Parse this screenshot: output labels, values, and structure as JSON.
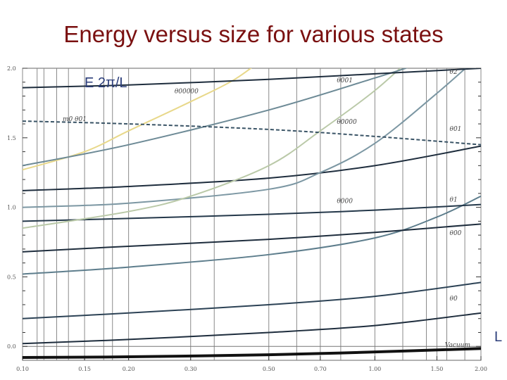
{
  "slide": {
    "title": "Energy versus size for various states"
  },
  "chart_data": {
    "type": "line",
    "title": "Energy versus size for various states",
    "ylabel": "E 2π/L",
    "xlabel": "L",
    "x_scale": "log",
    "xlim": [
      0.1,
      2.0
    ],
    "ylim": [
      -0.1,
      2.0
    ],
    "x_ticks": [
      0.1,
      0.15,
      0.2,
      0.3,
      0.5,
      0.7,
      1.0,
      1.5,
      2.0
    ],
    "x_tick_labels": [
      "0.10",
      "0.15",
      "0.20",
      "0.30",
      "0.50",
      "0.70",
      "1.00",
      "1.50",
      "2.00"
    ],
    "y_ticks": [
      0.0,
      0.5,
      1.0,
      1.5,
      2.0
    ],
    "y_tick_labels": [
      "0.0",
      "0.5",
      "1.0",
      "1.5",
      "2.0"
    ],
    "grid": "vertical",
    "vertical_gridlines": [
      0.1,
      0.11,
      0.115,
      0.125,
      0.135,
      0.15,
      0.17,
      0.18,
      0.2,
      0.3,
      0.35,
      0.5,
      0.6,
      0.7,
      0.8,
      1.0,
      1.2,
      1.4,
      1.5,
      1.6,
      1.8,
      2.0
    ],
    "series": [
      {
        "name": "Vacuum",
        "color": "#111111",
        "width": 4,
        "dash": false,
        "label_at": [
          1.58,
          -0.005
        ],
        "x": [
          0.1,
          0.2,
          0.5,
          1.0,
          2.0
        ],
        "y": [
          -0.08,
          -0.075,
          -0.06,
          -0.04,
          -0.015
        ]
      },
      {
        "name": "",
        "color": "#1e2d3d",
        "width": 2,
        "dash": false,
        "x": [
          0.1,
          0.2,
          0.5,
          1.0,
          2.0
        ],
        "y": [
          0.02,
          0.05,
          0.1,
          0.15,
          0.24
        ]
      },
      {
        "name": "θ0",
        "color": "#2c4255",
        "width": 2,
        "dash": false,
        "label_at": [
          1.63,
          0.33
        ],
        "x": [
          0.1,
          0.2,
          0.5,
          1.0,
          2.0
        ],
        "y": [
          0.2,
          0.24,
          0.3,
          0.36,
          0.46
        ]
      },
      {
        "name": "",
        "color": "#5d7d8c",
        "width": 2,
        "dash": false,
        "x": [
          0.1,
          0.2,
          0.5,
          1.0,
          1.5,
          2.0
        ],
        "y": [
          0.52,
          0.57,
          0.66,
          0.78,
          0.93,
          1.08
        ]
      },
      {
        "name": "θ00",
        "color": "#1e2d3d",
        "width": 2,
        "dash": false,
        "label_at": [
          1.63,
          0.8
        ],
        "x": [
          0.1,
          0.2,
          0.5,
          1.0,
          2.0
        ],
        "y": [
          0.68,
          0.72,
          0.77,
          0.82,
          0.88
        ]
      },
      {
        "name": "θ1",
        "color": "#24384a",
        "width": 2,
        "dash": false,
        "label_at": [
          1.63,
          1.04
        ],
        "x": [
          0.1,
          0.2,
          0.5,
          1.0,
          2.0
        ],
        "y": [
          0.9,
          0.92,
          0.95,
          0.98,
          1.02
        ]
      },
      {
        "name": "θ01",
        "color": "#1e2d3d",
        "width": 2,
        "dash": false,
        "label_at": [
          1.63,
          1.55
        ],
        "x": [
          0.1,
          0.2,
          0.5,
          1.0,
          2.0
        ],
        "y": [
          1.12,
          1.15,
          1.21,
          1.3,
          1.44
        ]
      },
      {
        "name": "θ000",
        "color": "#7c97a3",
        "width": 2,
        "dash": false,
        "label_at": [
          0.78,
          1.03
        ],
        "x": [
          0.1,
          0.2,
          0.5,
          0.7,
          1.0,
          1.5,
          2.0
        ],
        "y": [
          1.0,
          1.03,
          1.13,
          1.25,
          1.46,
          1.82,
          2.1
        ]
      },
      {
        "name": "θ0000",
        "color": "#bac9a8",
        "width": 2,
        "dash": false,
        "label_at": [
          0.78,
          1.6
        ],
        "x": [
          0.1,
          0.2,
          0.3,
          0.5,
          0.7,
          1.0,
          1.3
        ],
        "y": [
          0.85,
          0.97,
          1.08,
          1.3,
          1.55,
          1.84,
          2.1
        ]
      },
      {
        "name": "θ00000",
        "color": "#e8d88a",
        "width": 2,
        "dash": false,
        "label_at": [
          0.27,
          1.82
        ],
        "x": [
          0.1,
          0.15,
          0.2,
          0.3,
          0.4,
          0.5
        ],
        "y": [
          1.27,
          1.4,
          1.55,
          1.76,
          1.92,
          2.1
        ]
      },
      {
        "name": "θ001",
        "color": "#6d8a96",
        "width": 2,
        "dash": false,
        "label_at": [
          0.78,
          1.9
        ],
        "x": [
          0.1,
          0.2,
          0.5,
          1.0,
          1.5,
          2.0
        ],
        "y": [
          1.3,
          1.45,
          1.7,
          1.93,
          2.07,
          2.15
        ]
      },
      {
        "name": "θ2",
        "color": "#1e2d3d",
        "width": 2,
        "dash": false,
        "label_at": [
          1.63,
          1.96
        ],
        "x": [
          0.1,
          0.2,
          0.5,
          1.0,
          2.0
        ],
        "y": [
          1.86,
          1.88,
          1.92,
          1.96,
          2.0
        ]
      },
      {
        "name": "m0 θ01",
        "color": "#3a5466",
        "width": 2,
        "dash": true,
        "label_at": [
          0.13,
          1.62
        ],
        "x": [
          0.1,
          0.2,
          0.5,
          1.0,
          2.0
        ],
        "y": [
          1.62,
          1.6,
          1.56,
          1.51,
          1.45
        ]
      }
    ]
  }
}
